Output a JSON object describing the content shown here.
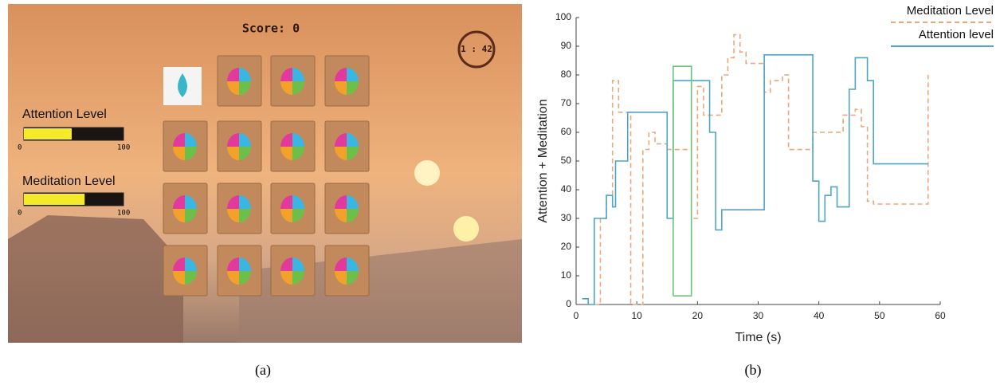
{
  "game": {
    "score": "Score: 0",
    "timer": "1 : 42",
    "attention": {
      "label": "Attention Level",
      "min": 0,
      "max": 100,
      "level": 48
    },
    "meditation": {
      "label": "Meditation Level",
      "min": 0,
      "max": 100,
      "level": 61
    }
  },
  "captions": [
    "(a)",
    "(b)"
  ],
  "chart_data": {
    "type": "line",
    "xlabel": "Time (s)",
    "ylabel": "Attention + Meditation",
    "xlim": [
      0,
      60
    ],
    "ylim": [
      0,
      100
    ],
    "xticks": [
      0,
      10,
      20,
      30,
      40,
      50,
      60
    ],
    "yticks": [
      0,
      10,
      20,
      30,
      40,
      50,
      60,
      70,
      80,
      90,
      100
    ],
    "legend": "upper right",
    "series": [
      {
        "name": "Meditation Level",
        "color": "#eba77a",
        "dashed": true,
        "x": [
          3,
          4,
          4,
          5,
          5,
          6,
          6,
          7,
          7,
          8,
          8,
          9,
          9,
          11,
          11,
          12,
          12,
          13,
          13,
          15,
          15,
          19,
          19,
          20,
          20,
          21,
          21,
          24,
          24,
          25,
          25,
          26,
          26,
          27,
          27,
          28,
          28,
          31,
          31,
          32,
          32,
          34,
          34,
          35,
          35,
          39,
          39,
          44,
          44,
          46,
          46,
          47,
          47,
          48,
          48,
          49,
          49,
          58,
          58
        ],
        "values": [
          0,
          0,
          30,
          30,
          38,
          38,
          78,
          78,
          67,
          67,
          67,
          67,
          0,
          0,
          54,
          54,
          60,
          60,
          56,
          56,
          54,
          54,
          30,
          30,
          76,
          76,
          66,
          66,
          80,
          80,
          86,
          86,
          94,
          94,
          88,
          88,
          84,
          84,
          74,
          74,
          78,
          78,
          80,
          80,
          54,
          54,
          60,
          60,
          66,
          66,
          68,
          68,
          62,
          62,
          36,
          36,
          35,
          35,
          80
        ]
      },
      {
        "name": "Attention level",
        "color": "#4ea5c4",
        "dashed": false,
        "x": [
          1,
          2,
          2,
          3,
          3,
          5,
          5,
          6,
          6,
          6.5,
          6.5,
          8.5,
          8.5,
          15,
          15,
          16,
          16,
          22,
          22,
          23,
          23,
          24,
          24,
          31,
          31,
          39,
          39,
          40,
          40,
          41,
          41,
          42,
          42,
          43,
          43,
          45,
          45,
          46,
          46,
          48,
          48,
          49,
          49,
          58
        ],
        "values": [
          2,
          2,
          0,
          0,
          30,
          30,
          38,
          38,
          34,
          34,
          50,
          50,
          67,
          67,
          30,
          30,
          78,
          78,
          60,
          60,
          26,
          26,
          33,
          33,
          87,
          87,
          43,
          43,
          29,
          29,
          38,
          38,
          41,
          41,
          34,
          34,
          75,
          75,
          86,
          86,
          78,
          78,
          49,
          49
        ]
      },
      {
        "color": "#6cc47a",
        "dashed": false,
        "x": [
          16,
          19,
          19,
          16,
          16
        ],
        "values": [
          3,
          3,
          83,
          83,
          3
        ]
      }
    ]
  }
}
